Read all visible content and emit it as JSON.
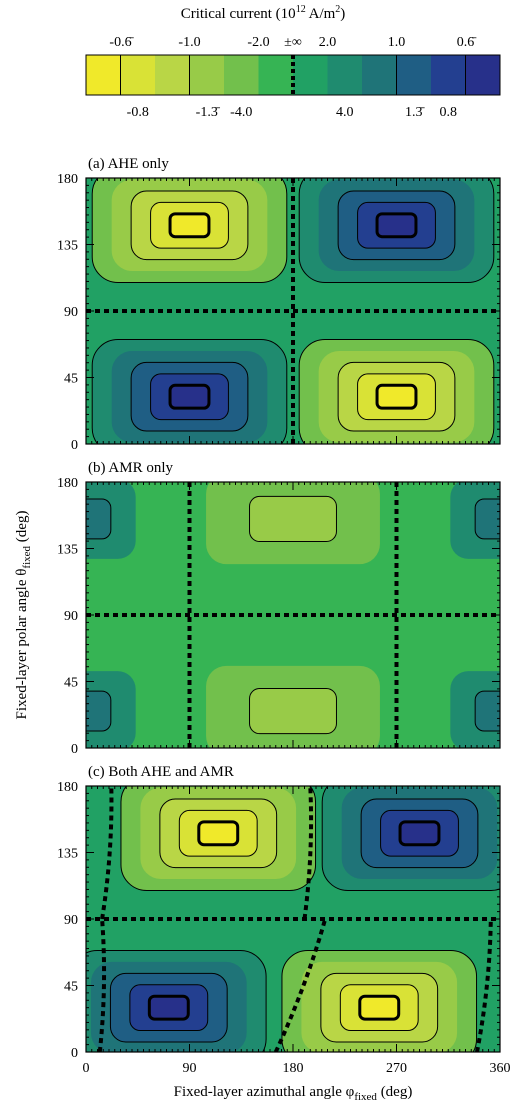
{
  "colorbar": {
    "title": "Critical current (10",
    "title_exp": "12",
    "title_unit": " A/m",
    "title_unit_exp": "2",
    "title_close": ")",
    "top_labels": [
      "-0.6̄",
      "-1.0",
      "-2.0",
      "±∞",
      "2.0",
      "1.0",
      "0.6̄"
    ],
    "bottom_labels": [
      "-0.8",
      "-1.3̄",
      "-4.0",
      "4.0",
      "1.3̄",
      "0.8"
    ],
    "colors": [
      "#f0e92a",
      "#d9e236",
      "#b9d646",
      "#98cb48",
      "#72c04c",
      "#36b454",
      "#21a164",
      "#1f8b6f",
      "#1f7478",
      "#1f5e84",
      "#233f90",
      "#27308a"
    ]
  },
  "axes": {
    "xlabel": "Fixed-layer azimuthal angle φ",
    "xlabel_sub": "fixed",
    "xlabel_unit": " (deg)",
    "ylabel": "Fixed-layer polar angle θ",
    "ylabel_sub": "fixed",
    "ylabel_unit": " (deg)",
    "x_ticks": [
      "0",
      "90",
      "180",
      "270",
      "360"
    ],
    "y_ticks": [
      "0",
      "45",
      "90",
      "135",
      "180"
    ]
  },
  "chart_data": [
    {
      "type": "heatmap",
      "title": "(a) AHE only",
      "xlim": [
        0,
        360
      ],
      "ylim": [
        0,
        180
      ],
      "x_ticks": [
        0,
        90,
        180,
        270,
        360
      ],
      "y_ticks": [
        0,
        45,
        90,
        135,
        180
      ],
      "dashed_lines": [
        {
          "axis": "x",
          "value": 180
        },
        {
          "axis": "y",
          "value": 90
        }
      ],
      "extrema": [
        {
          "phi": 90,
          "theta": 148,
          "value": -0.6
        },
        {
          "phi": 270,
          "theta": 148,
          "value": 0.6
        },
        {
          "phi": 90,
          "theta": 32,
          "value": 0.6
        },
        {
          "phi": 270,
          "theta": 32,
          "value": -0.6
        }
      ]
    },
    {
      "type": "heatmap",
      "title": "(b) AMR only",
      "xlim": [
        0,
        360
      ],
      "ylim": [
        0,
        180
      ],
      "x_ticks": [
        0,
        90,
        180,
        270,
        360
      ],
      "y_ticks": [
        0,
        45,
        90,
        135,
        180
      ],
      "dashed_lines": [
        {
          "axis": "x",
          "value": 90
        },
        {
          "axis": "x",
          "value": 270
        },
        {
          "axis": "y",
          "value": 90
        }
      ],
      "extrema": [
        {
          "phi": 180,
          "theta": 155,
          "value": -2.0
        },
        {
          "phi": 180,
          "theta": 25,
          "value": -2.0
        },
        {
          "phi": 0,
          "theta": 155,
          "value": 1.3
        },
        {
          "phi": 360,
          "theta": 155,
          "value": 1.3
        },
        {
          "phi": 0,
          "theta": 25,
          "value": 1.3
        },
        {
          "phi": 360,
          "theta": 25,
          "value": 1.3
        }
      ]
    },
    {
      "type": "heatmap",
      "title": "(c) Both AHE and AMR",
      "xlim": [
        0,
        360
      ],
      "ylim": [
        0,
        180
      ],
      "x_ticks": [
        0,
        90,
        180,
        270,
        360
      ],
      "y_ticks": [
        0,
        45,
        90,
        135,
        180
      ],
      "dashed_lines": [
        {
          "axis": "y",
          "value": 90
        },
        {
          "axis": "curve",
          "points": [
            [
              12,
              0
            ],
            [
              14,
              90
            ]
          ]
        },
        {
          "axis": "curve",
          "points": [
            [
              14,
              90
            ],
            [
              22,
              180
            ]
          ]
        },
        {
          "axis": "curve",
          "points": [
            [
              165,
              0
            ],
            [
              208,
              90
            ]
          ]
        },
        {
          "axis": "curve",
          "points": [
            [
              190,
              90
            ],
            [
              195,
              180
            ]
          ]
        },
        {
          "axis": "curve",
          "points": [
            [
              340,
              0
            ],
            [
              352,
              90
            ]
          ]
        }
      ],
      "extrema": [
        {
          "phi": 115,
          "theta": 148,
          "value": -0.6
        },
        {
          "phi": 290,
          "theta": 148,
          "value": 0.6
        },
        {
          "phi": 72,
          "theta": 30,
          "value": 0.6
        },
        {
          "phi": 255,
          "theta": 30,
          "value": -0.6
        }
      ]
    }
  ]
}
